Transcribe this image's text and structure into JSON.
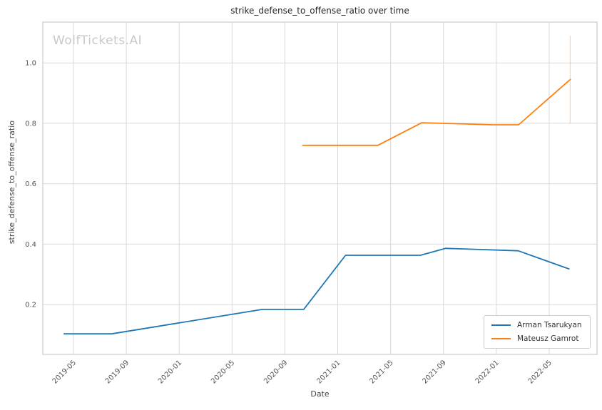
{
  "watermark": "WolfTickets.AI",
  "chart_data": {
    "type": "line",
    "title": "strike_defense_to_offense_ratio over time",
    "xlabel": "Date",
    "ylabel": "strike_defense_to_offense_ratio",
    "x_tick_labels": [
      "2019-05",
      "2019-09",
      "2020-01",
      "2020-05",
      "2020-09",
      "2021-01",
      "2021-05",
      "2021-09",
      "2022-01",
      "2022-05"
    ],
    "y_tick_labels": [
      "0.2",
      "0.4",
      "0.6",
      "0.8",
      "1.0"
    ],
    "xlim_months": [
      1.68,
      43.62
    ],
    "ylim": [
      0.035,
      1.135
    ],
    "grid": true,
    "legend_position": "lower right",
    "colors": {
      "grid": "#d9d9d9",
      "spine": "#cccccc",
      "tick_text": "#555555",
      "title_text": "#262626",
      "watermark": "#c9c9c9",
      "arman": "#1f77b4",
      "mateusz": "#ff7f0e"
    },
    "series": [
      {
        "name": "Arman Tsarukyan",
        "color": "#1f77b4",
        "points": [
          {
            "date": "2019-04-10",
            "value": 0.103
          },
          {
            "date": "2019-07-28",
            "value": 0.103
          },
          {
            "date": "2020-07-10",
            "value": 0.184
          },
          {
            "date": "2020-10-14",
            "value": 0.184
          },
          {
            "date": "2021-01-19",
            "value": 0.363
          },
          {
            "date": "2021-07-09",
            "value": 0.363
          },
          {
            "date": "2021-09-06",
            "value": 0.386
          },
          {
            "date": "2022-02-21",
            "value": 0.378
          },
          {
            "date": "2022-06-16",
            "value": 0.318
          }
        ]
      },
      {
        "name": "Mateusz Gamrot",
        "color": "#ff7f0e",
        "points": [
          {
            "date": "2020-10-12",
            "value": 0.727
          },
          {
            "date": "2021-04-02",
            "value": 0.727
          },
          {
            "date": "2021-07-12",
            "value": 0.802
          },
          {
            "date": "2021-12-23",
            "value": 0.795
          },
          {
            "date": "2022-02-22",
            "value": 0.795
          },
          {
            "date": "2022-06-19",
            "value": 0.945
          }
        ],
        "error_bar": {
          "date": "2022-06-19",
          "low": 0.8,
          "high": 1.09
        }
      }
    ]
  }
}
